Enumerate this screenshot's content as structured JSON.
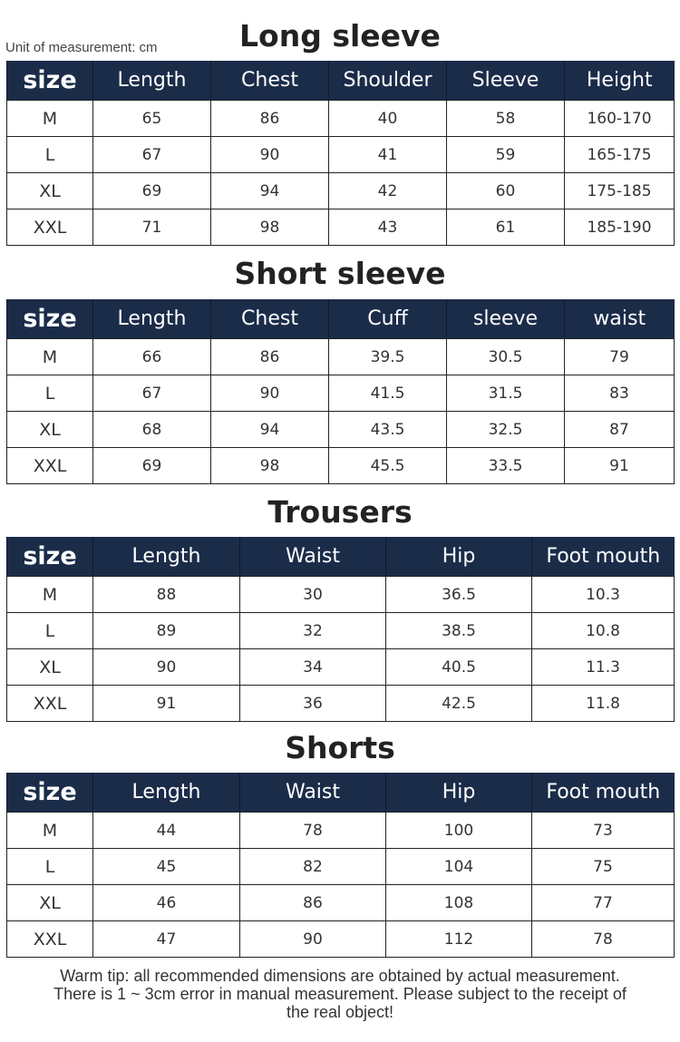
{
  "unit_label": "Unit of measurement: cm",
  "colors": {
    "header_bg": "#1b2c49",
    "header_text": "#ffffff"
  },
  "tables": [
    {
      "title": "Long sleeve",
      "headers": [
        "size",
        "Length",
        "Chest",
        "Shoulder",
        "Sleeve",
        "Height"
      ],
      "rows": [
        [
          "M",
          "65",
          "86",
          "40",
          "58",
          "160-170"
        ],
        [
          "L",
          "67",
          "90",
          "41",
          "59",
          "165-175"
        ],
        [
          "XL",
          "69",
          "94",
          "42",
          "60",
          "175-185"
        ],
        [
          "XXL",
          "71",
          "98",
          "43",
          "61",
          "185-190"
        ]
      ]
    },
    {
      "title": "Short sleeve",
      "headers": [
        "size",
        "Length",
        "Chest",
        "Cuff",
        "sleeve",
        "waist"
      ],
      "rows": [
        [
          "M",
          "66",
          "86",
          "39.5",
          "30.5",
          "79"
        ],
        [
          "L",
          "67",
          "90",
          "41.5",
          "31.5",
          "83"
        ],
        [
          "XL",
          "68",
          "94",
          "43.5",
          "32.5",
          "87"
        ],
        [
          "XXL",
          "69",
          "98",
          "45.5",
          "33.5",
          "91"
        ]
      ]
    },
    {
      "title": "Trousers",
      "headers": [
        "size",
        "Length",
        "Waist",
        "Hip",
        "Foot mouth"
      ],
      "rows": [
        [
          "M",
          "88",
          "30",
          "36.5",
          "10.3"
        ],
        [
          "L",
          "89",
          "32",
          "38.5",
          "10.8"
        ],
        [
          "XL",
          "90",
          "34",
          "40.5",
          "11.3"
        ],
        [
          "XXL",
          "91",
          "36",
          "42.5",
          "11.8"
        ]
      ]
    },
    {
      "title": "Shorts",
      "headers": [
        "size",
        "Length",
        "Waist",
        "Hip",
        "Foot mouth"
      ],
      "rows": [
        [
          "M",
          "44",
          "78",
          "100",
          "73"
        ],
        [
          "L",
          "45",
          "82",
          "104",
          "75"
        ],
        [
          "XL",
          "46",
          "86",
          "108",
          "77"
        ],
        [
          "XXL",
          "47",
          "90",
          "112",
          "78"
        ]
      ]
    }
  ],
  "tip_lines": [
    "Warm tip: all recommended dimensions are obtained by actual measurement.",
    "There is 1 ~ 3cm error in manual measurement. Please subject to the receipt of",
    "the real object!"
  ]
}
